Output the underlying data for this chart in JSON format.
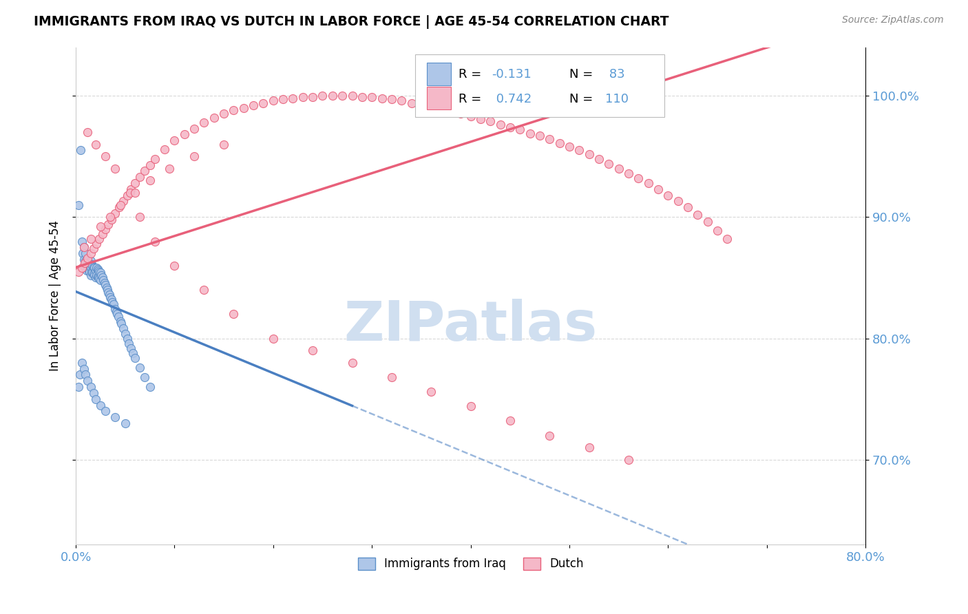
{
  "title": "IMMIGRANTS FROM IRAQ VS DUTCH IN LABOR FORCE | AGE 45-54 CORRELATION CHART",
  "source": "Source: ZipAtlas.com",
  "ylabel": "In Labor Force | Age 45-54",
  "x_min": 0.0,
  "x_max": 0.8,
  "y_min": 0.63,
  "y_max": 1.04,
  "iraq_color": "#aec6e8",
  "dutch_color": "#f5b8c8",
  "iraq_edge_color": "#5b8fc9",
  "dutch_edge_color": "#e8607a",
  "iraq_line_color": "#4a7fc1",
  "dutch_line_color": "#e8607a",
  "watermark_color": "#d0dff0",
  "grid_color": "#d8d8d8",
  "tick_color": "#5b9bd5",
  "legend_R_iraq": "-0.131",
  "legend_N_iraq": "83",
  "legend_R_dutch": "0.742",
  "legend_N_dutch": "110",
  "iraq_scatter_x": [
    0.003,
    0.005,
    0.006,
    0.007,
    0.008,
    0.008,
    0.009,
    0.01,
    0.01,
    0.01,
    0.011,
    0.011,
    0.012,
    0.012,
    0.013,
    0.013,
    0.014,
    0.014,
    0.015,
    0.015,
    0.015,
    0.016,
    0.016,
    0.017,
    0.017,
    0.018,
    0.018,
    0.019,
    0.019,
    0.02,
    0.02,
    0.021,
    0.021,
    0.022,
    0.022,
    0.023,
    0.023,
    0.024,
    0.024,
    0.025,
    0.025,
    0.026,
    0.027,
    0.028,
    0.029,
    0.03,
    0.031,
    0.032,
    0.033,
    0.034,
    0.035,
    0.036,
    0.037,
    0.038,
    0.04,
    0.041,
    0.042,
    0.043,
    0.045,
    0.046,
    0.048,
    0.05,
    0.052,
    0.054,
    0.056,
    0.058,
    0.06,
    0.065,
    0.07,
    0.075,
    0.003,
    0.004,
    0.006,
    0.008,
    0.01,
    0.012,
    0.015,
    0.018,
    0.02,
    0.025,
    0.03,
    0.04,
    0.05
  ],
  "iraq_scatter_y": [
    0.91,
    0.955,
    0.88,
    0.87,
    0.865,
    0.875,
    0.862,
    0.858,
    0.864,
    0.87,
    0.856,
    0.863,
    0.858,
    0.865,
    0.856,
    0.862,
    0.855,
    0.86,
    0.852,
    0.858,
    0.864,
    0.855,
    0.861,
    0.854,
    0.86,
    0.853,
    0.859,
    0.852,
    0.858,
    0.85,
    0.856,
    0.852,
    0.858,
    0.851,
    0.857,
    0.85,
    0.856,
    0.849,
    0.855,
    0.848,
    0.854,
    0.852,
    0.85,
    0.848,
    0.846,
    0.844,
    0.842,
    0.84,
    0.838,
    0.836,
    0.834,
    0.832,
    0.83,
    0.828,
    0.824,
    0.822,
    0.82,
    0.818,
    0.814,
    0.812,
    0.808,
    0.804,
    0.8,
    0.796,
    0.792,
    0.788,
    0.784,
    0.776,
    0.768,
    0.76,
    0.76,
    0.77,
    0.78,
    0.775,
    0.77,
    0.765,
    0.76,
    0.755,
    0.75,
    0.745,
    0.74,
    0.735,
    0.73
  ],
  "dutch_scatter_x": [
    0.003,
    0.006,
    0.009,
    0.012,
    0.015,
    0.018,
    0.021,
    0.024,
    0.027,
    0.03,
    0.033,
    0.036,
    0.04,
    0.044,
    0.048,
    0.052,
    0.056,
    0.06,
    0.065,
    0.07,
    0.075,
    0.08,
    0.09,
    0.1,
    0.11,
    0.12,
    0.13,
    0.14,
    0.15,
    0.16,
    0.17,
    0.18,
    0.19,
    0.2,
    0.21,
    0.22,
    0.23,
    0.24,
    0.25,
    0.26,
    0.27,
    0.28,
    0.29,
    0.3,
    0.31,
    0.32,
    0.33,
    0.34,
    0.35,
    0.36,
    0.37,
    0.38,
    0.39,
    0.4,
    0.41,
    0.42,
    0.43,
    0.44,
    0.45,
    0.46,
    0.47,
    0.48,
    0.49,
    0.5,
    0.51,
    0.52,
    0.53,
    0.54,
    0.55,
    0.56,
    0.57,
    0.58,
    0.59,
    0.6,
    0.61,
    0.62,
    0.63,
    0.64,
    0.65,
    0.66,
    0.012,
    0.02,
    0.03,
    0.04,
    0.055,
    0.065,
    0.08,
    0.1,
    0.13,
    0.16,
    0.2,
    0.24,
    0.28,
    0.32,
    0.36,
    0.4,
    0.44,
    0.48,
    0.52,
    0.56,
    0.008,
    0.015,
    0.025,
    0.035,
    0.045,
    0.06,
    0.075,
    0.095,
    0.12,
    0.15
  ],
  "dutch_scatter_y": [
    0.855,
    0.858,
    0.862,
    0.866,
    0.87,
    0.874,
    0.878,
    0.882,
    0.886,
    0.89,
    0.894,
    0.898,
    0.903,
    0.908,
    0.913,
    0.918,
    0.923,
    0.928,
    0.933,
    0.938,
    0.943,
    0.948,
    0.956,
    0.963,
    0.968,
    0.973,
    0.978,
    0.982,
    0.985,
    0.988,
    0.99,
    0.992,
    0.994,
    0.996,
    0.997,
    0.998,
    0.999,
    0.999,
    1.0,
    1.0,
    1.0,
    1.0,
    0.999,
    0.999,
    0.998,
    0.997,
    0.996,
    0.994,
    0.993,
    0.991,
    0.989,
    0.987,
    0.985,
    0.983,
    0.981,
    0.979,
    0.976,
    0.974,
    0.972,
    0.969,
    0.967,
    0.964,
    0.961,
    0.958,
    0.955,
    0.952,
    0.948,
    0.944,
    0.94,
    0.936,
    0.932,
    0.928,
    0.923,
    0.918,
    0.913,
    0.908,
    0.902,
    0.896,
    0.889,
    0.882,
    0.97,
    0.96,
    0.95,
    0.94,
    0.92,
    0.9,
    0.88,
    0.86,
    0.84,
    0.82,
    0.8,
    0.79,
    0.78,
    0.768,
    0.756,
    0.744,
    0.732,
    0.72,
    0.71,
    0.7,
    0.875,
    0.882,
    0.892,
    0.9,
    0.91,
    0.92,
    0.93,
    0.94,
    0.95,
    0.96
  ]
}
